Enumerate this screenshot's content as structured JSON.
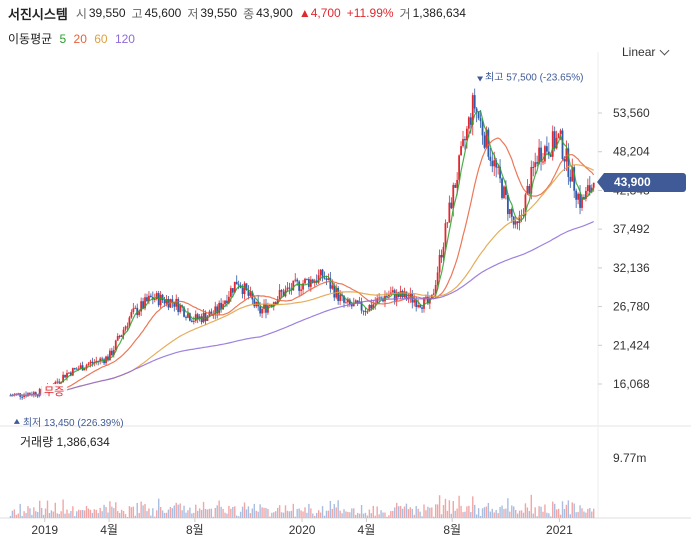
{
  "stock": {
    "name": "서진시스템",
    "open_label": "시",
    "open": "39,550",
    "high_label": "고",
    "high": "45,600",
    "low_label": "저",
    "low": "39,550",
    "close_label": "종",
    "close": "43,900",
    "change": "▲4,700",
    "change_pct": "+11.99%",
    "volume_label": "거",
    "volume": "1,386,634"
  },
  "ma_legend": {
    "label": "이동평균",
    "periods": [
      {
        "text": "5",
        "color": "#2ca02c"
      },
      {
        "text": "20",
        "color": "#e8603c"
      },
      {
        "text": "60",
        "color": "#e0a040"
      },
      {
        "text": "120",
        "color": "#8e6bd8"
      }
    ]
  },
  "scale_selector": "Linear",
  "current_price_tag": "43,900",
  "max_marker": "최고 57,500 (-23.65%)",
  "min_marker": "최저 13,450 (226.39%)",
  "annotation": "무증",
  "volume_panel": {
    "title": "거래량 1,386,634",
    "axis_label": "9.77m"
  },
  "colors": {
    "up": "#e0282f",
    "down": "#2f5aa8",
    "tag": "#3f5a96",
    "ma5": "#2ca02c",
    "ma20": "#e8603c",
    "ma60": "#e0a040",
    "ma120": "#8e6bd8",
    "vol_up": "#f2a5a5",
    "vol_down": "#a9bde0"
  },
  "chart_data": {
    "type": "candlestick",
    "y_ticks": [
      "53,560",
      "48,204",
      "42,848",
      "37,492",
      "32,136",
      "26,780",
      "21,424",
      "16,068"
    ],
    "y_tick_values": [
      53560,
      48204,
      42848,
      37492,
      32136,
      26780,
      21424,
      16068
    ],
    "x_ticks": [
      "2019",
      "4월",
      "8월",
      "2020",
      "4월",
      "8월",
      "2021"
    ],
    "x_tick_months": [
      0,
      3,
      7,
      12,
      15,
      19,
      24
    ],
    "max_price": 57500,
    "min_price": 13450,
    "last_close": 43900,
    "annotation_month": 0.3,
    "monthly_close": [
      [
        0,
        15000
      ],
      [
        1,
        17500
      ],
      [
        2,
        18800
      ],
      [
        3,
        19800
      ],
      [
        4,
        25500
      ],
      [
        5,
        28000
      ],
      [
        6,
        27500
      ],
      [
        7,
        25000
      ],
      [
        8,
        26000
      ],
      [
        9,
        30500
      ],
      [
        10,
        26000
      ],
      [
        11,
        28500
      ],
      [
        12,
        30000
      ],
      [
        13,
        31000
      ],
      [
        14,
        27000
      ],
      [
        15,
        26500
      ],
      [
        16,
        28500
      ],
      [
        17,
        28000
      ],
      [
        18,
        27000
      ],
      [
        19,
        42000
      ],
      [
        20,
        55000
      ],
      [
        21,
        46000
      ],
      [
        22,
        37000
      ],
      [
        23,
        48000
      ],
      [
        24,
        50000
      ],
      [
        25,
        41000
      ],
      [
        25.6,
        43900
      ]
    ]
  }
}
